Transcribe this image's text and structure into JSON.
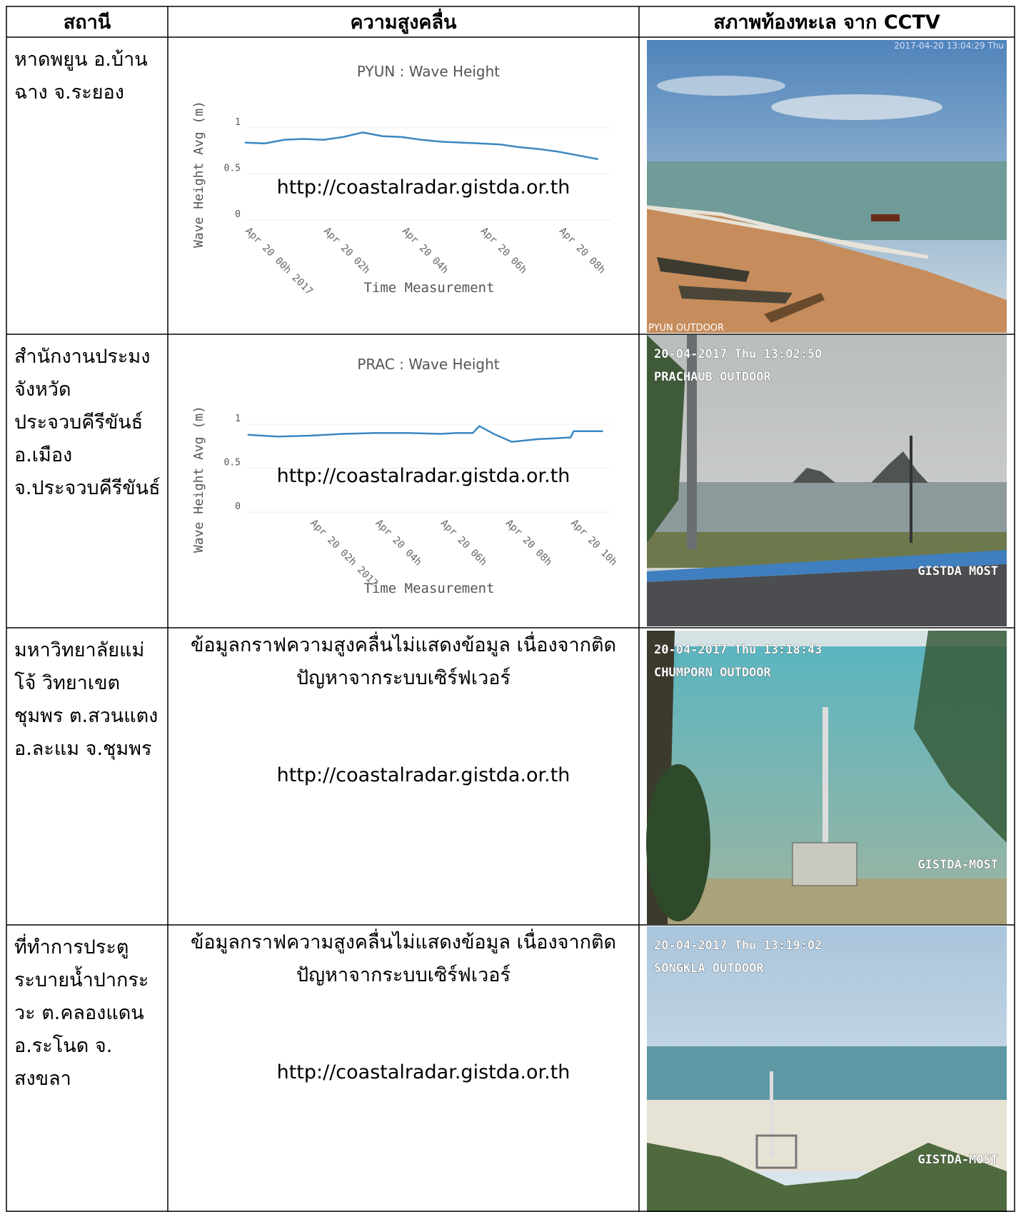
{
  "table": {
    "header": [
      "สถานี",
      "ความสูงคลื่น",
      "สภาพท้องทะเล จาก CCTV"
    ],
    "rows": [
      {
        "station": [
          "หาดพยูน อ.บ้าน",
          "ฉาง จ.ระยอง"
        ],
        "chart": {
          "type": "line",
          "title": "PYUN : Wave Height",
          "ylabel": "Wave Height Avg (m)",
          "xlabel": "Time Measurement",
          "x": [
            "2017-04-20 00:00",
            "2017-04-20 00:30",
            "2017-04-20 01:00",
            "2017-04-20 01:30",
            "2017-04-20 02:00",
            "2017-04-20 02:30",
            "2017-04-20 03:00",
            "2017-04-20 03:30",
            "2017-04-20 04:00",
            "2017-04-20 04:30",
            "2017-04-20 05:00",
            "2017-04-20 05:30",
            "2017-04-20 06:00",
            "2017-04-20 06:30",
            "2017-04-20 07:00",
            "2017-04-20 07:30",
            "2017-04-20 08:00",
            "2017-04-20 08:30",
            "2017-04-20 09:00"
          ],
          "values": [
            0.84,
            0.83,
            0.87,
            0.88,
            0.87,
            0.9,
            0.95,
            0.91,
            0.9,
            0.87,
            0.85,
            0.84,
            0.83,
            0.82,
            0.79,
            0.77,
            0.74,
            0.7,
            0.66
          ],
          "color": "#3b87c2",
          "grid": true,
          "xlim": [
            "2017-04-20 00:00",
            "2017-04-20 09:20"
          ],
          "xticks": [
            {
              "value": "2017-04-20 00:00",
              "label": "Apr 20 00h 2017"
            },
            {
              "value": "2017-04-20 02:00",
              "label": "Apr 20 02h"
            },
            {
              "value": "2017-04-20 04:00",
              "label": "Apr 20 04h"
            },
            {
              "value": "2017-04-20 06:00",
              "label": "Apr 20 06h"
            },
            {
              "value": "2017-04-20 08:00",
              "label": "Apr 20 08h"
            }
          ],
          "ylim": [
            0,
            1.1
          ],
          "yticks": [
            0,
            0.5,
            1
          ],
          "watermark": "http://coastalradar.gistda.or.th"
        },
        "cctv": {
          "timestamp": "2017-04-20 13:04:29 Thu",
          "camera": "PYUN OUTDOOR"
        }
      },
      {
        "station": [
          "สำนักงานประมง",
          "จังหวัด",
          "ประจวบคีรีขันธ์",
          "อ.เมือง",
          "จ.ประจวบคีรีขันธ์"
        ],
        "chart": {
          "type": "line",
          "title": "PRAC : Wave Height",
          "ylabel": "Wave Height Avg (m)",
          "xlabel": "Time Measurement",
          "x": [
            "2017-04-20 00:05",
            "2017-04-20 01:00",
            "2017-04-20 02:00",
            "2017-04-20 03:00",
            "2017-04-20 04:00",
            "2017-04-20 05:00",
            "2017-04-20 06:00",
            "2017-04-20 06:30",
            "2017-04-20 07:00",
            "2017-04-20 07:12",
            "2017-04-20 07:42",
            "2017-04-20 08:12",
            "2017-04-20 09:00",
            "2017-04-20 10:00",
            "2017-04-20 10:06",
            "2017-04-20 11:00"
          ],
          "values": [
            0.88,
            0.86,
            0.87,
            0.89,
            0.9,
            0.9,
            0.89,
            0.9,
            0.9,
            0.98,
            0.88,
            0.8,
            0.83,
            0.85,
            0.92,
            0.92
          ],
          "color": "#3b87c2",
          "grid": true,
          "xlim": [
            "2017-04-20 00:00",
            "2017-04-20 11:15"
          ],
          "xticks": [
            {
              "value": "2017-04-20 02:00",
              "label": "Apr 20 02h 2017"
            },
            {
              "value": "2017-04-20 04:00",
              "label": "Apr 20 04h"
            },
            {
              "value": "2017-04-20 06:00",
              "label": "Apr 20 06h"
            },
            {
              "value": "2017-04-20 08:00",
              "label": "Apr 20 08h"
            },
            {
              "value": "2017-04-20 10:00",
              "label": "Apr 20 10h"
            }
          ],
          "ylim": [
            0,
            1.1
          ],
          "yticks": [
            0,
            0.5,
            1
          ],
          "watermark": "http://coastalradar.gistda.or.th"
        },
        "cctv": {
          "timestamp": "20-04-2017 Thu 13:02:50",
          "camera": "PRACHAUB OUTDOOR",
          "logo": "GISTDA MOST"
        }
      },
      {
        "station": [
          "มหาวิทยาลัยแม่",
          "โจ้ วิทยาเขต",
          "ชุมพร ต.สวนแตง",
          "อ.ละแม จ.ชุมพร"
        ],
        "message": [
          "ข้อมูลกราฟความสูงคลื่นไม่แสดงข้อมูล เนื่องจากติด",
          "ปัญหาจากระบบเซิร์ฟเวอร์"
        ],
        "watermark": "http://coastalradar.gistda.or.th",
        "cctv": {
          "timestamp": "20-04-2017 Thu 13:18:43",
          "camera": "CHUMPORN OUTDOOR",
          "logo": "GISTDA-MOST"
        }
      },
      {
        "station": [
          "ที่ทำการประตู",
          "ระบายน้ำปากระ",
          "วะ ต.คลองแดน",
          "อ.ระโนด จ.",
          "สงขลา"
        ],
        "message": [
          "ข้อมูลกราฟความสูงคลื่นไม่แสดงข้อมูล เนื่องจากติด",
          "ปัญหาจากระบบเซิร์ฟเวอร์"
        ],
        "watermark": "http://coastalradar.gistda.or.th",
        "cctv": {
          "timestamp": "20-04-2017 Thu 13:19:02",
          "camera": "SONGKLA OUTDOOR",
          "logo": "GISTDA-MOST"
        }
      }
    ]
  }
}
